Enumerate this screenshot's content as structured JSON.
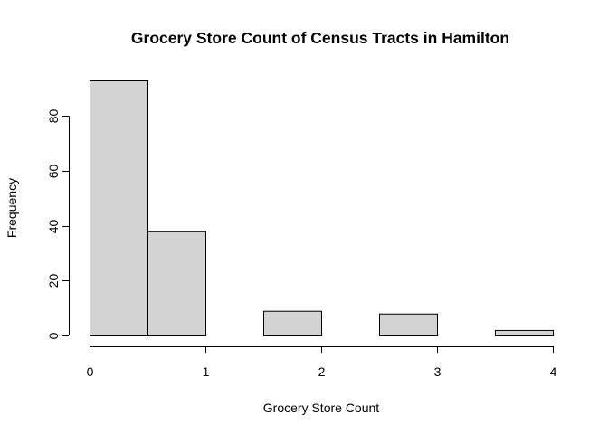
{
  "chart_data": {
    "type": "bar",
    "title": "Grocery Store Count of Census Tracts in Hamilton",
    "xlabel": "Grocery Store Count",
    "ylabel": "Frequency",
    "bins": [
      {
        "start": 0.0,
        "end": 0.5,
        "value": 93
      },
      {
        "start": 0.5,
        "end": 1.0,
        "value": 38
      },
      {
        "start": 1.0,
        "end": 1.5,
        "value": 0
      },
      {
        "start": 1.5,
        "end": 2.0,
        "value": 9
      },
      {
        "start": 2.0,
        "end": 2.5,
        "value": 0
      },
      {
        "start": 2.5,
        "end": 3.0,
        "value": 8
      },
      {
        "start": 3.0,
        "end": 3.5,
        "value": 0
      },
      {
        "start": 3.5,
        "end": 4.0,
        "value": 2
      }
    ],
    "x_ticks": [
      0,
      1,
      2,
      3,
      4
    ],
    "y_ticks": [
      0,
      20,
      40,
      60,
      80
    ],
    "xlim": [
      0,
      4
    ],
    "ylim": [
      0,
      93
    ],
    "grid": false,
    "bar_color": "#d3d3d3",
    "bar_edge_color": "#000000"
  }
}
